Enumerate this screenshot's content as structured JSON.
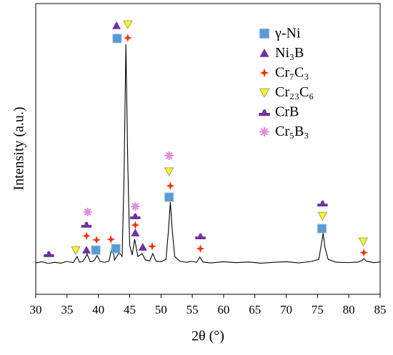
{
  "chart_data": {
    "type": "line",
    "xlabel": "2θ (°)",
    "ylabel": "Intensity (a.u.)",
    "xlim": [
      30,
      85
    ],
    "xticks": [
      30,
      35,
      40,
      45,
      50,
      55,
      60,
      65,
      70,
      75,
      80,
      85
    ],
    "ylim": [
      0,
      100
    ],
    "legend": "upper right",
    "series": [
      {
        "color": "#000000",
        "x": [
          30,
          31,
          32,
          33,
          34,
          35,
          36,
          36.6,
          37,
          37.6,
          38.2,
          38.7,
          39.3,
          39.8,
          40.3,
          41,
          41.7,
          42.2,
          42.6,
          43.3,
          43.8,
          44.1,
          44.4,
          44.7,
          45.0,
          45.4,
          45.8,
          46.3,
          47.0,
          47.5,
          48.2,
          48.7,
          49.2,
          50,
          50.8,
          51.2,
          51.5,
          51.8,
          52.2,
          53,
          54,
          55,
          55.7,
          56.2,
          56.7,
          58,
          60,
          62,
          64,
          66,
          68,
          70,
          72,
          74,
          75.2,
          75.6,
          75.9,
          76.2,
          76.7,
          78,
          80,
          81.5,
          82.1,
          82.4,
          82.8,
          84,
          85
        ],
        "values": [
          10.8,
          11.2,
          10.6,
          11.0,
          10.7,
          11.3,
          10.9,
          13.0,
          11.0,
          11.4,
          13.8,
          11.2,
          11.5,
          13.3,
          11.3,
          11.0,
          11.4,
          16.5,
          11.8,
          14.3,
          13,
          40,
          86,
          45,
          17,
          13.5,
          19,
          13,
          14,
          11.8,
          11.5,
          14,
          11.4,
          11.2,
          12,
          22,
          31.7,
          22,
          13,
          11.4,
          11.0,
          11.3,
          11.0,
          12.8,
          11.1,
          10.8,
          11.2,
          10.9,
          11.1,
          10.7,
          11.0,
          11.2,
          10.8,
          11.3,
          12,
          17,
          21,
          16,
          12,
          11,
          10.9,
          11.1,
          11.6,
          12.3,
          11.4,
          10.9,
          11.1
        ]
      }
    ],
    "phases": [
      {
        "name": "γ-Ni",
        "marker": "square",
        "color": "#5b9bd5",
        "x": [
          43.0,
          39.6,
          42.8,
          51.3,
          75.7
        ],
        "y": [
          88,
          15.2,
          15.7,
          33.4,
          22.6
        ]
      },
      {
        "name": "Ni₃B",
        "marker": "triangle",
        "color": "#7030a0",
        "x": [
          42.9,
          38.1,
          45.9,
          47.1
        ],
        "y": [
          92.4,
          15.2,
          21.1,
          16.2
        ]
      },
      {
        "name": "Cr₇C₃",
        "marker": "star",
        "color": "#ff2a00",
        "x": [
          44.7,
          38.1,
          39.7,
          42.0,
          45.9,
          48.6,
          51.5,
          56.3,
          82.4
        ],
        "y": [
          88.2,
          20.1,
          18.7,
          18.9,
          23.8,
          16.5,
          37.3,
          15.7,
          14.3
        ]
      },
      {
        "name": "Cr₂₃C₆",
        "marker": "down-triangle",
        "color": "#ffff00",
        "x": [
          44.7,
          36.4,
          51.3,
          75.8,
          82.3
        ],
        "y": [
          92.9,
          15.2,
          42.3,
          27,
          18.2
        ]
      },
      {
        "name": "CrB",
        "marker": "cap",
        "color": "#7030a0",
        "x": [
          32.1,
          38.1,
          45.9,
          56.3,
          75.8
        ],
        "y": [
          14,
          24.1,
          27,
          20.1,
          31.4
        ]
      },
      {
        "name": "Cr₅B₃",
        "marker": "asterisk",
        "color": "#e08ce0",
        "x": [
          38.3,
          45.9,
          51.3
        ],
        "y": [
          28.3,
          30.2,
          47.7
        ]
      }
    ]
  }
}
